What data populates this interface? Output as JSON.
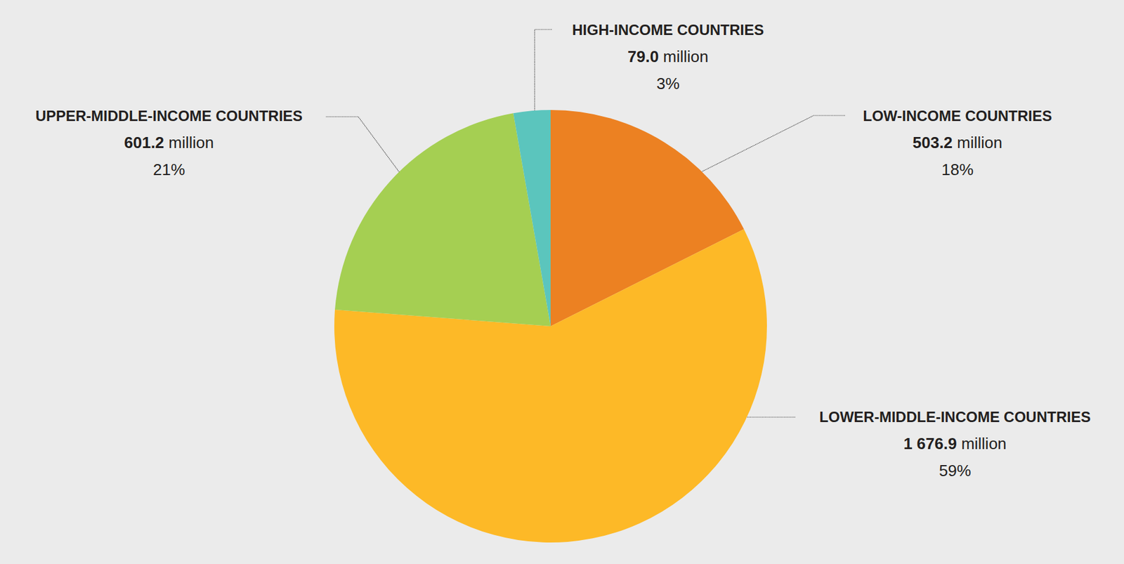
{
  "chart_data": {
    "type": "pie",
    "categories": [
      "LOW-INCOME COUNTRIES",
      "LOWER-MIDDLE-INCOME COUNTRIES",
      "UPPER-MIDDLE-INCOME COUNTRIES",
      "HIGH-INCOME COUNTRIES"
    ],
    "values": [
      503.2,
      1676.9,
      601.2,
      79.0
    ],
    "value_labels": [
      "503.2",
      "1 676.9",
      "601.2",
      "79.0"
    ],
    "unit": "million",
    "percents": [
      18,
      59,
      21,
      3
    ],
    "percent_labels": [
      "18%",
      "59%",
      "21%",
      "3%"
    ],
    "colors": [
      "#ec8122",
      "#fdb927",
      "#a5cf52",
      "#5bc5bd"
    ],
    "data_labels": true
  }
}
